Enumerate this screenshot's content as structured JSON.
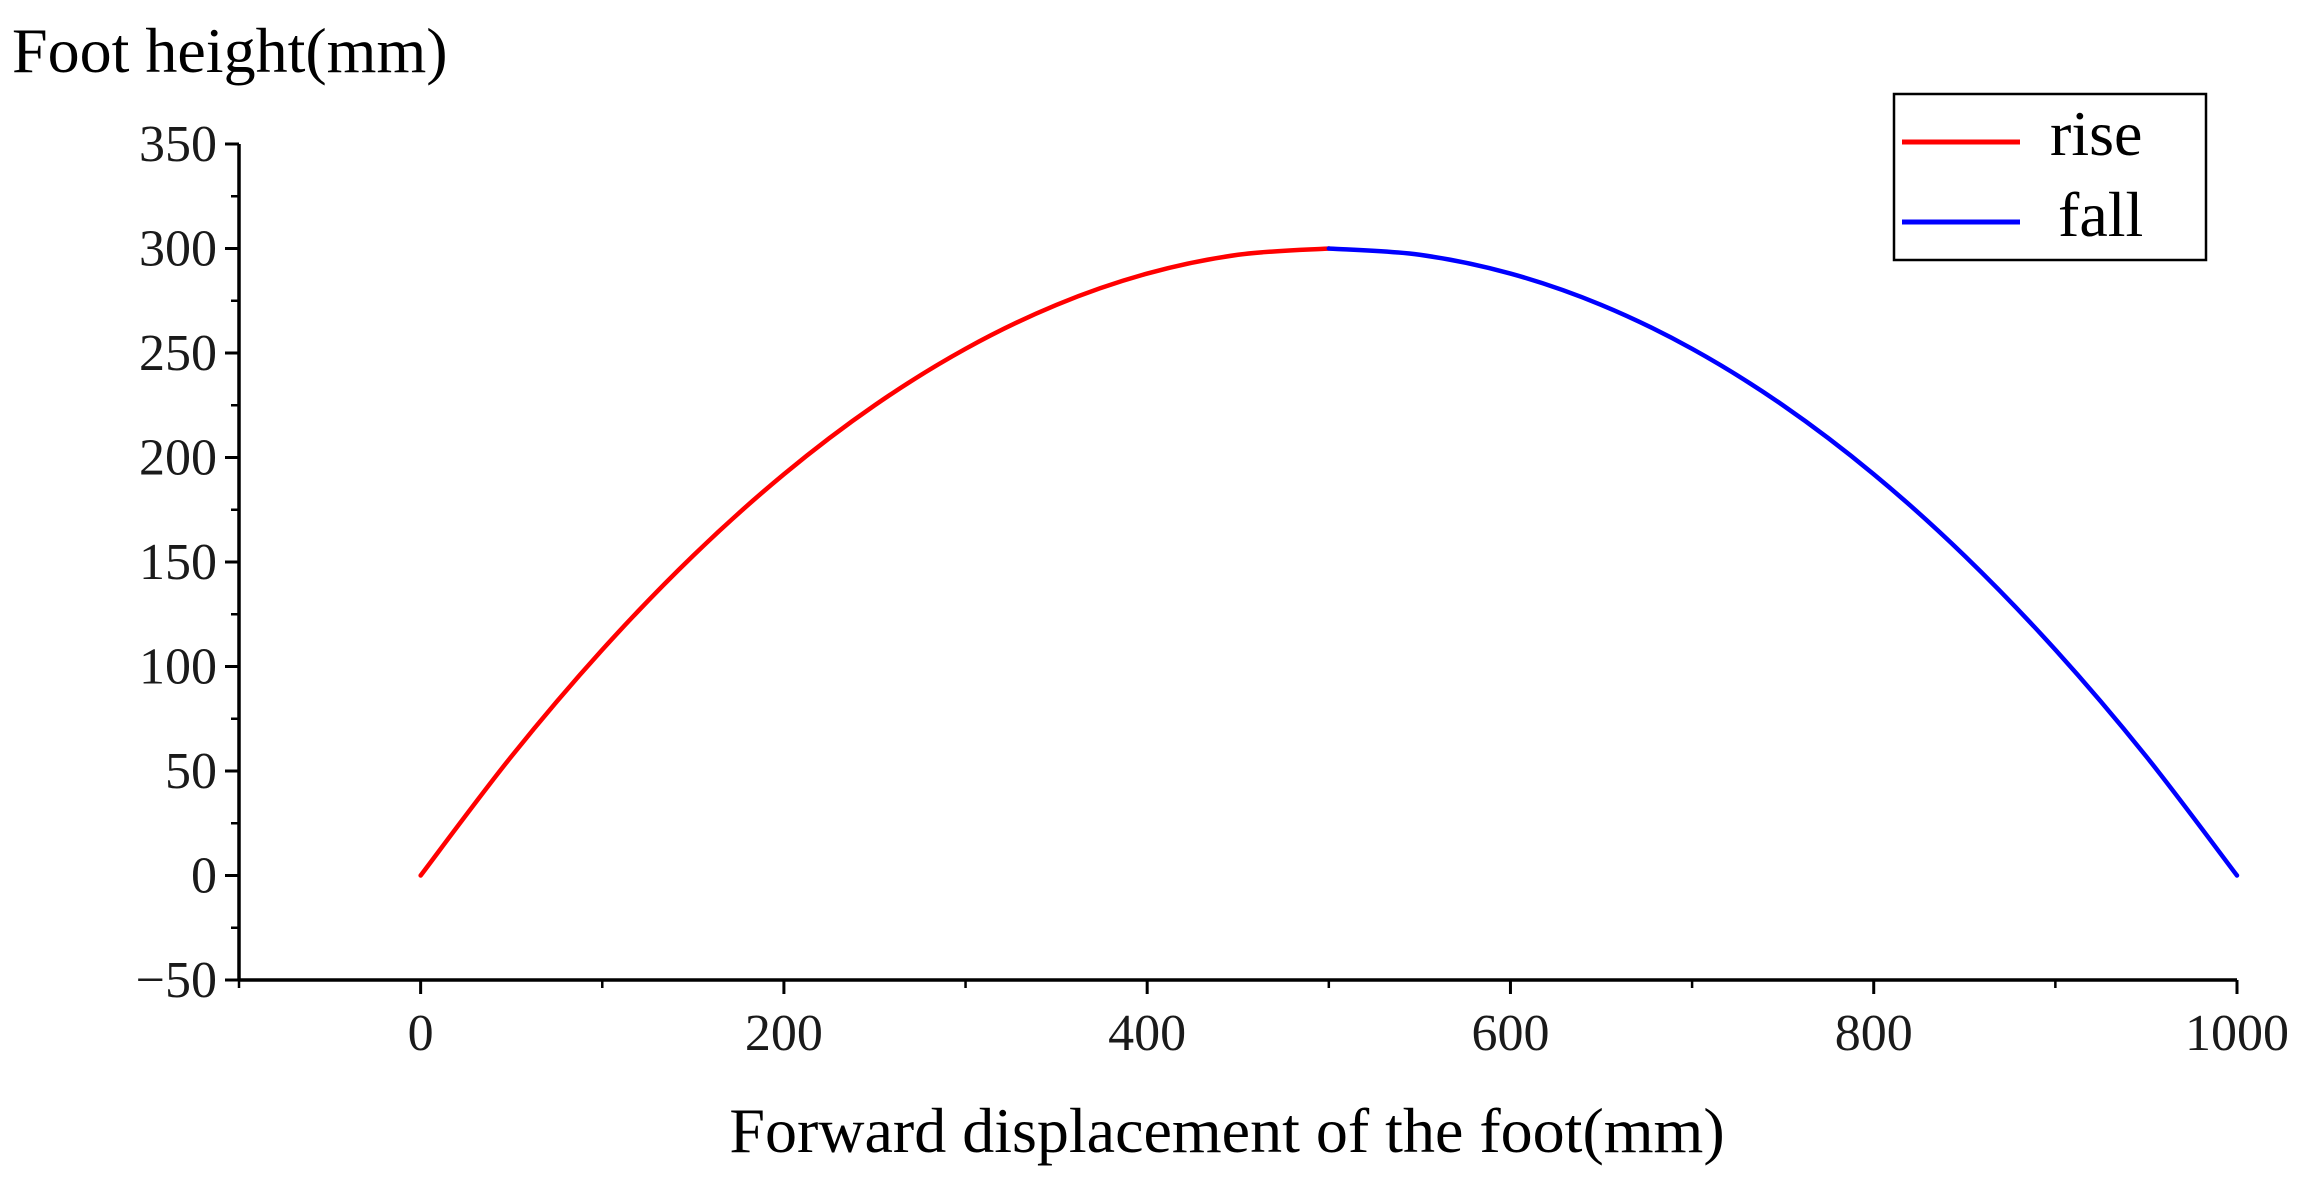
{
  "chart_data": {
    "type": "line",
    "title": "",
    "xlabel": "Forward displacement of the foot(mm)",
    "ylabel": "Foot height(mm)",
    "xlim": [
      -100,
      1000
    ],
    "ylim": [
      -50,
      350
    ],
    "x_ticks": [
      0,
      200,
      400,
      600,
      800,
      1000
    ],
    "y_ticks": [
      -50,
      0,
      50,
      100,
      150,
      200,
      250,
      300,
      350
    ],
    "grid": false,
    "legend_position": "top-right",
    "series": [
      {
        "name": "rise",
        "color": "#ff0000",
        "x": [
          0,
          50,
          100,
          150,
          200,
          250,
          300,
          350,
          400,
          450,
          500
        ],
        "y": [
          0,
          57,
          108,
          153,
          192,
          225,
          252,
          273,
          288,
          297,
          300
        ]
      },
      {
        "name": "fall",
        "color": "#0000ff",
        "x": [
          500,
          550,
          600,
          650,
          700,
          750,
          800,
          850,
          900,
          950,
          1000
        ],
        "y": [
          300,
          297,
          288,
          273,
          252,
          225,
          192,
          153,
          108,
          57,
          0
        ]
      }
    ]
  }
}
